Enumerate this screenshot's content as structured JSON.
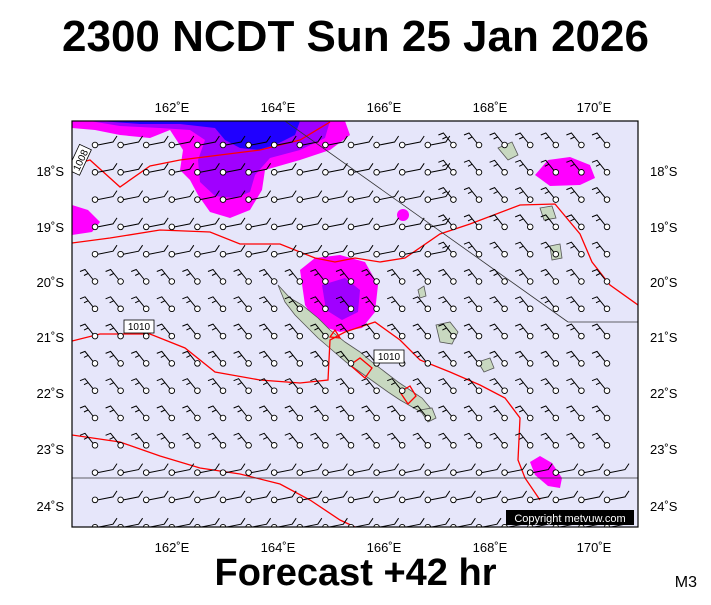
{
  "header": {
    "title": "2300 NCDT Sun 25 Jan 2026"
  },
  "footer": {
    "forecast": "Forecast +42 hr",
    "model": "M3"
  },
  "map": {
    "copyright": "Copyright metvuw.com",
    "lon_labels": [
      "162˚E",
      "164˚E",
      "166˚E",
      "168˚E",
      "170˚E"
    ],
    "lat_labels_left": [
      "18˚S",
      "19˚S",
      "20˚S",
      "21˚S",
      "22˚S",
      "23˚S",
      "24˚S"
    ],
    "lat_labels_right": [
      "18˚S",
      "19˚S",
      "20˚S",
      "21˚S",
      "22˚S",
      "23˚S",
      "24˚S"
    ],
    "isobar_labels": [
      "1008",
      "1010",
      "1010"
    ],
    "colors": {
      "ocean": "#e6e6fa",
      "isobar": "#ff0000",
      "precip_light": "#ff00ff",
      "precip_mid": "#a000ff",
      "precip_heavy": "#2000ff",
      "land": "#c8d8c0"
    }
  }
}
